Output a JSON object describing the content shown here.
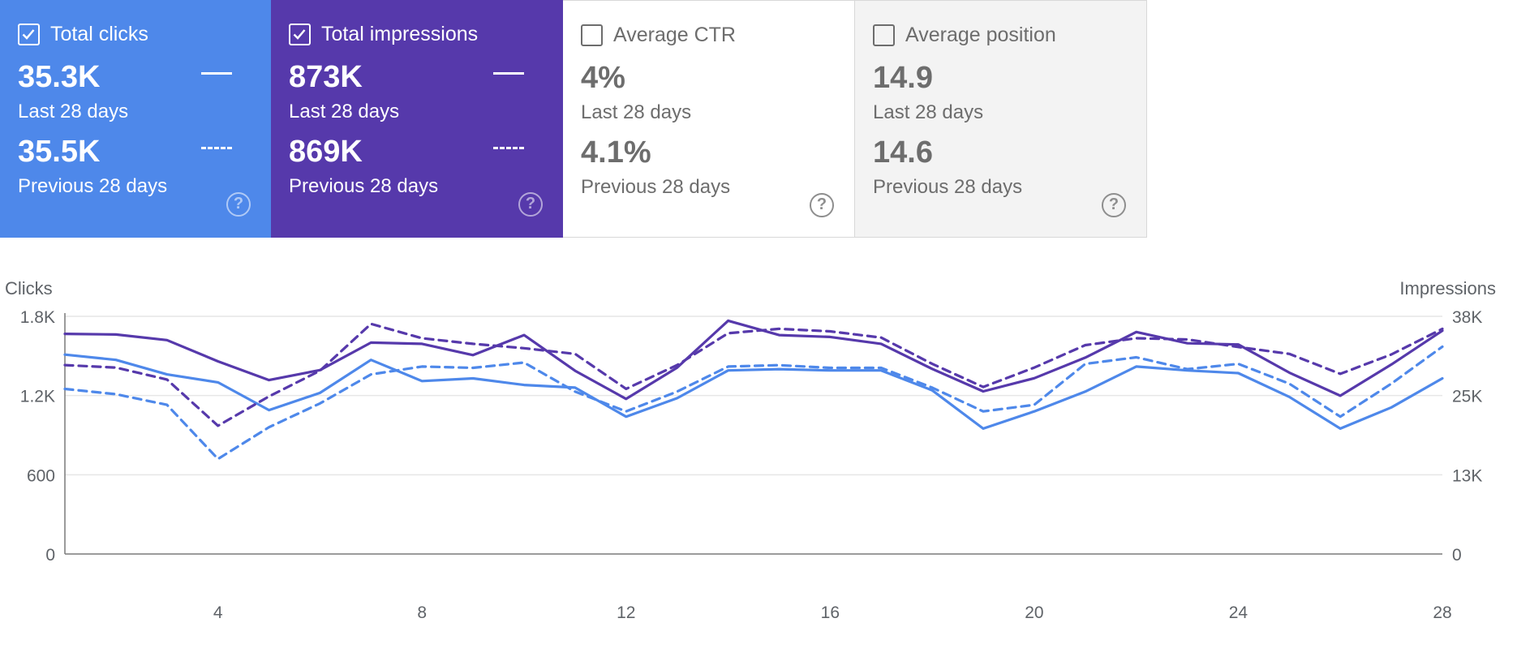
{
  "cards": [
    {
      "label": "Total clicks",
      "current": "35.3K",
      "current_label": "Last 28 days",
      "previous": "35.5K",
      "previous_label": "Previous 28 days",
      "selected": true,
      "color": "#4e88ea"
    },
    {
      "label": "Total impressions",
      "current": "873K",
      "current_label": "Last 28 days",
      "previous": "869K",
      "previous_label": "Previous 28 days",
      "selected": true,
      "color": "#5639ab"
    },
    {
      "label": "Average CTR",
      "current": "4%",
      "current_label": "Last 28 days",
      "previous": "4.1%",
      "previous_label": "Previous 28 days",
      "selected": false
    },
    {
      "label": "Average position",
      "current": "14.9",
      "current_label": "Last 28 days",
      "previous": "14.6",
      "previous_label": "Previous 28 days",
      "selected": false
    }
  ],
  "help_glyph": "?",
  "chart_data": {
    "type": "line",
    "ylabel_left": "Clicks",
    "ylabel_right": "Impressions",
    "y_left_ticks": [
      "0",
      "600",
      "1.2K",
      "1.8K"
    ],
    "y_right_ticks": [
      "0",
      "13K",
      "25K",
      "38K"
    ],
    "x_ticks": [
      "4",
      "8",
      "12",
      "16",
      "20",
      "24",
      "28"
    ],
    "x": [
      1,
      2,
      3,
      4,
      5,
      6,
      7,
      8,
      9,
      10,
      11,
      12,
      13,
      14,
      15,
      16,
      17,
      18,
      19,
      20,
      21,
      22,
      23,
      24,
      25,
      26,
      27,
      28
    ],
    "ylim_left": [
      0,
      1800
    ],
    "ylim_right": [
      0,
      38000
    ],
    "grid": true,
    "series": [
      {
        "axis": "left",
        "style": "solid",
        "color": "#4e88ea",
        "values": [
          1510,
          1470,
          1360,
          1300,
          1090,
          1220,
          1470,
          1310,
          1330,
          1280,
          1260,
          1040,
          1180,
          1390,
          1400,
          1390,
          1390,
          1240,
          950,
          1080,
          1230,
          1420,
          1390,
          1370,
          1190,
          950,
          1110,
          1330
        ]
      },
      {
        "axis": "left",
        "style": "dashed",
        "color": "#4e88ea",
        "values": [
          1250,
          1210,
          1130,
          720,
          960,
          1140,
          1360,
          1420,
          1410,
          1450,
          1230,
          1080,
          1230,
          1420,
          1430,
          1410,
          1410,
          1260,
          1080,
          1130,
          1440,
          1490,
          1400,
          1440,
          1290,
          1040,
          1290,
          1570
        ]
      },
      {
        "axis": "right",
        "style": "solid",
        "color": "#5639ab",
        "values": [
          35200,
          35100,
          34200,
          30800,
          27800,
          29400,
          33800,
          33600,
          31800,
          35000,
          29300,
          24800,
          29800,
          37300,
          35000,
          34700,
          33600,
          29600,
          26000,
          28100,
          31400,
          35500,
          33700,
          33500,
          29000,
          25300,
          30300,
          35700
        ]
      },
      {
        "axis": "right",
        "style": "dashed",
        "color": "#5639ab",
        "values": [
          30200,
          29800,
          27900,
          20500,
          25200,
          29300,
          36800,
          34500,
          33600,
          32900,
          32000,
          26400,
          30200,
          35300,
          36000,
          35600,
          34600,
          30400,
          26700,
          29800,
          33400,
          34500,
          34300,
          33100,
          32000,
          28800,
          31900,
          36000
        ]
      }
    ]
  }
}
